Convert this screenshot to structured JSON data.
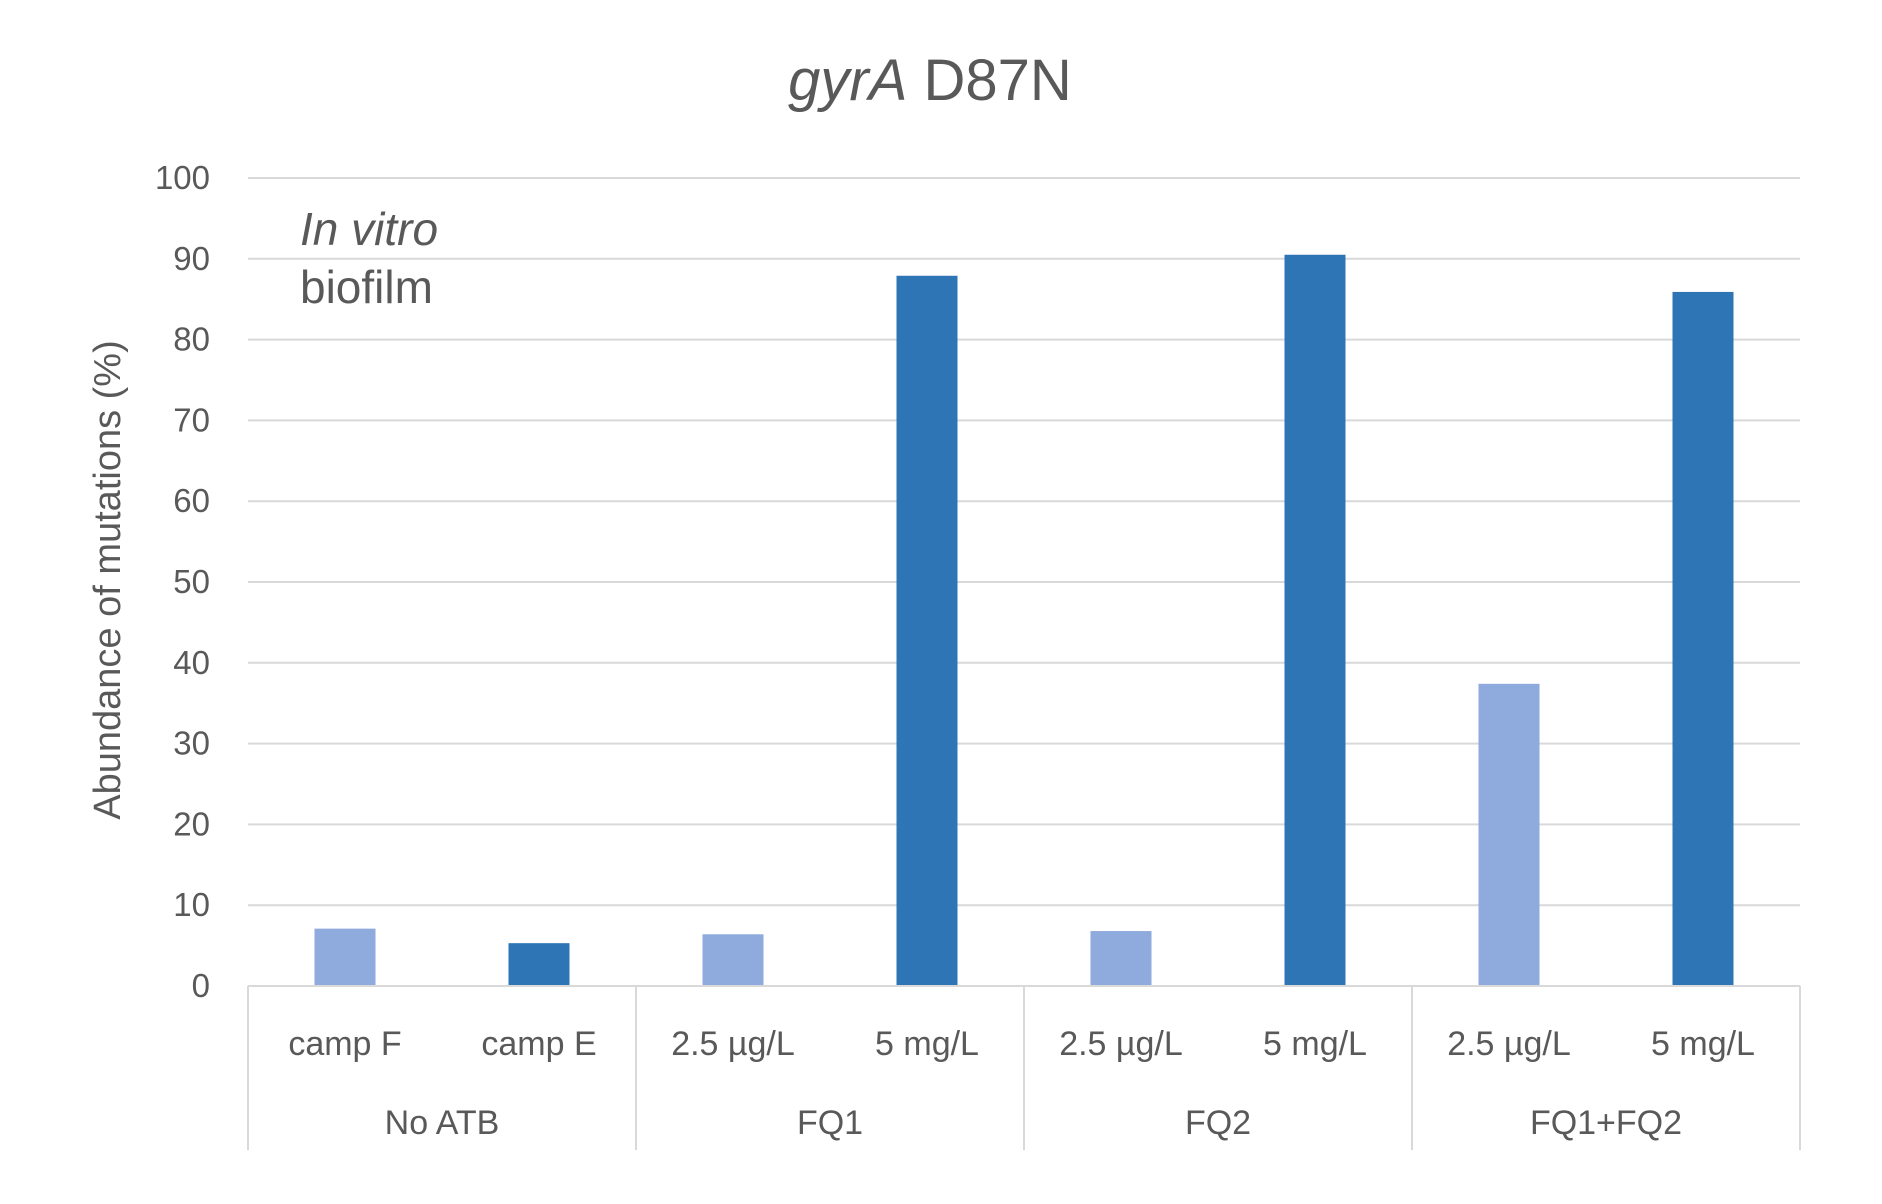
{
  "chart_data": {
    "type": "bar",
    "title_italic": "gyrA",
    "title_rest": " D87N",
    "ylabel": "Abundance of mutations (%)",
    "ylim": [
      0,
      100
    ],
    "yticks": [
      0,
      10,
      20,
      30,
      40,
      50,
      60,
      70,
      80,
      90,
      100
    ],
    "grid": true,
    "annotation": {
      "line1": "In vitro",
      "line2": "biofilm"
    },
    "groups": [
      {
        "name": "No ATB",
        "categories": [
          "camp F",
          "camp E"
        ]
      },
      {
        "name": "FQ1",
        "categories": [
          "2.5 µg/L",
          "5 mg/L"
        ]
      },
      {
        "name": "FQ2",
        "categories": [
          "2.5 µg/L",
          "5 mg/L"
        ]
      },
      {
        "name": "FQ1+FQ2",
        "categories": [
          "2.5 µg/L",
          "5 mg/L"
        ]
      }
    ],
    "bars": [
      {
        "group": "No ATB",
        "category": "camp F",
        "value": 7.1,
        "color": "#8FAADC"
      },
      {
        "group": "No ATB",
        "category": "camp E",
        "value": 5.3,
        "color": "#2E75B6"
      },
      {
        "group": "FQ1",
        "category": "2.5 µg/L",
        "value": 6.4,
        "color": "#8FAADC"
      },
      {
        "group": "FQ1",
        "category": "5 mg/L",
        "value": 87.9,
        "color": "#2E75B6"
      },
      {
        "group": "FQ2",
        "category": "2.5 µg/L",
        "value": 6.8,
        "color": "#8FAADC"
      },
      {
        "group": "FQ2",
        "category": "5 mg/L",
        "value": 90.5,
        "color": "#2E75B6"
      },
      {
        "group": "FQ1+FQ2",
        "category": "2.5 µg/L",
        "value": 37.4,
        "color": "#8FAADC"
      },
      {
        "group": "FQ1+FQ2",
        "category": "5 mg/L",
        "value": 85.9,
        "color": "#2E75B6"
      }
    ],
    "colors": {
      "light_bar": "#8FAADC",
      "dark_bar": "#2E75B6",
      "gridline": "#D9D9D9",
      "text": "#595959"
    }
  }
}
